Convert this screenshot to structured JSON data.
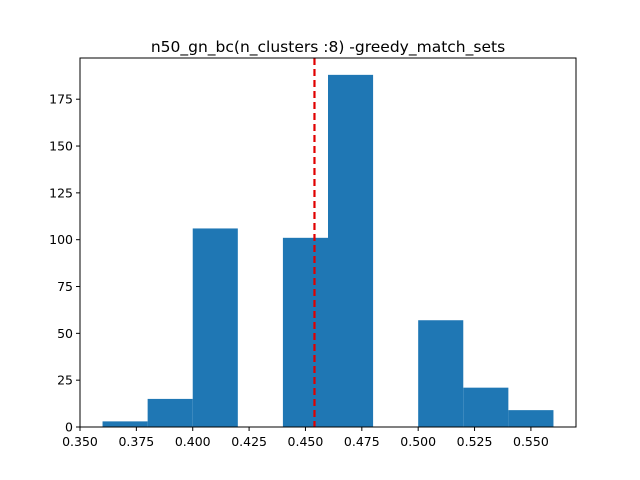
{
  "chart_data": {
    "type": "bar",
    "title": "n50_gn_bc(n_clusters :8) -greedy_match_sets",
    "xlabel": "",
    "ylabel": "",
    "bins": [
      {
        "x0": 0.36,
        "x1": 0.38,
        "count": 3
      },
      {
        "x0": 0.38,
        "x1": 0.4,
        "count": 15
      },
      {
        "x0": 0.4,
        "x1": 0.42,
        "count": 106
      },
      {
        "x0": 0.42,
        "x1": 0.44,
        "count": 0
      },
      {
        "x0": 0.44,
        "x1": 0.46,
        "count": 101
      },
      {
        "x0": 0.46,
        "x1": 0.48,
        "count": 188
      },
      {
        "x0": 0.48,
        "x1": 0.5,
        "count": 0
      },
      {
        "x0": 0.5,
        "x1": 0.52,
        "count": 57
      },
      {
        "x0": 0.52,
        "x1": 0.54,
        "count": 21
      },
      {
        "x0": 0.54,
        "x1": 0.56,
        "count": 9
      }
    ],
    "vline": {
      "x": 0.454,
      "color": "#e00000",
      "style": "dashed"
    },
    "xlim": [
      0.35,
      0.57
    ],
    "ylim": [
      0,
      197
    ],
    "xticks": [
      0.35,
      0.375,
      0.4,
      0.425,
      0.45,
      0.475,
      0.5,
      0.525,
      0.55
    ],
    "xtick_labels": [
      "0.350",
      "0.375",
      "0.400",
      "0.425",
      "0.450",
      "0.475",
      "0.500",
      "0.525",
      "0.550"
    ],
    "yticks": [
      0,
      25,
      50,
      75,
      100,
      125,
      150,
      175
    ],
    "ytick_labels": [
      "0",
      "25",
      "50",
      "75",
      "100",
      "125",
      "150",
      "175"
    ],
    "bar_color": "#1f77b4",
    "grid": false,
    "legend": "none"
  }
}
